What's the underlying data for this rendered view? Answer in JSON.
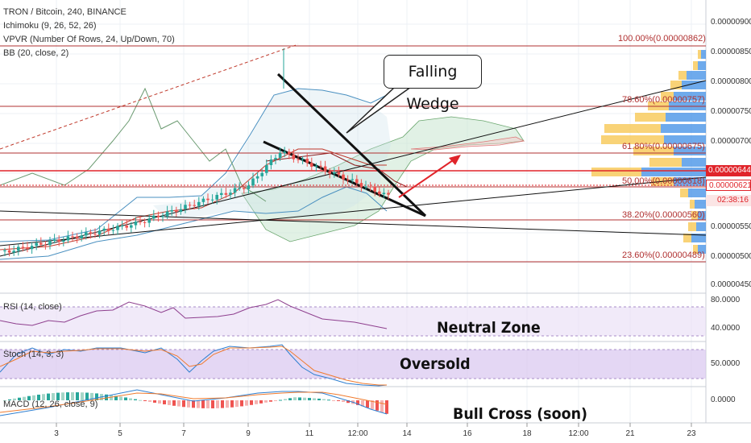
{
  "header": {
    "title": "TRON / Bitcoin, 240, BINANCE",
    "indicators": [
      "Ichimoku (9, 26, 52, 26)",
      "VPVR (Number Of Rows, 24, Up/Down, 70)",
      "BB (20, close, 2)"
    ]
  },
  "panels": {
    "rsi_label": "RSI (14, close)",
    "stoch_label": "Stoch (14, 3, 3)",
    "macd_label": "MACD (12, 26, close, 9)"
  },
  "price_axis": [
    "0.00000900",
    "0.00000850",
    "0.00000800",
    "0.00000750",
    "0.00000700",
    "0.00000550",
    "0.00000500",
    "0.00000450"
  ],
  "rsi_axis": [
    "80.0000",
    "40.0000"
  ],
  "stoch_axis": [
    "50.0000"
  ],
  "macd_axis": [
    "0.0000"
  ],
  "time_axis": [
    "3",
    "5",
    "7",
    "9",
    "11",
    "12:00",
    "14",
    "16",
    "18",
    "12:00",
    "21",
    "23"
  ],
  "fib_levels": [
    {
      "label": "100.00%(0.00000862)"
    },
    {
      "label": "78.60%(0.00000757)"
    },
    {
      "label": "61.80%(0.00000675)"
    },
    {
      "label": "50.00%(0.00000618)"
    },
    {
      "label": "38.20%(0.00000560)"
    },
    {
      "label": "23.60%(0.00000489)"
    }
  ],
  "price_tags": {
    "last": "0.00000644",
    "prev": "0.00000621",
    "countdown": "02:38:16"
  },
  "annotations": {
    "pattern": "Falling Wedge",
    "rsi_zone": "Neutral Zone",
    "stoch_zone": "Oversold",
    "macd_note": "Bull Cross (soon)"
  },
  "colors": {
    "up": "#26a69a",
    "down": "#ef5350",
    "fib": "#b03030",
    "rsi_zone": "#e7dcf5",
    "stoch_zone": "#d9c6ef",
    "vpvr_up": "#3d8ee6",
    "vpvr_down": "#f7c44a",
    "arrow": "#e0242a"
  }
}
